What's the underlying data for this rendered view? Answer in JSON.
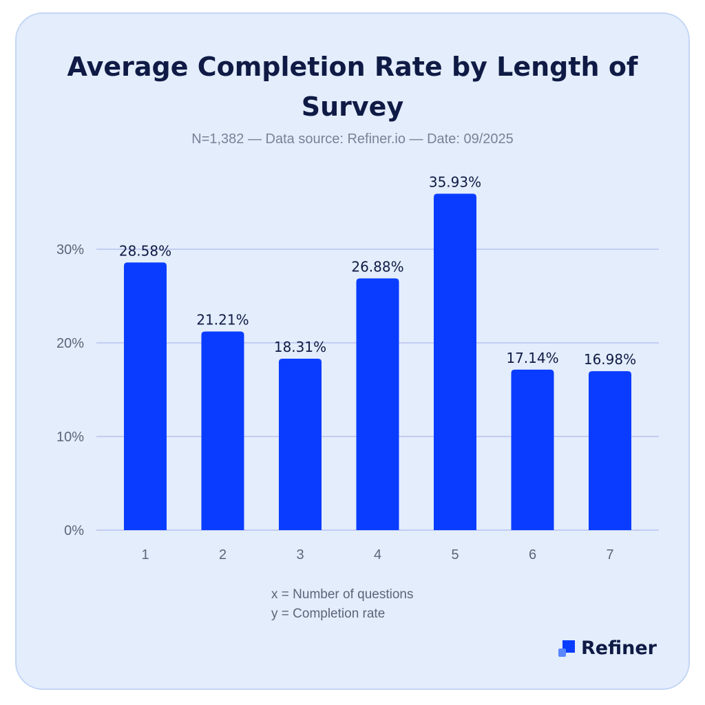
{
  "title": "Average Completion Rate by Length of Survey",
  "subtitle": "N=1,382  —  Data source: Refiner.io  —  Date: 09/2025",
  "legend": {
    "x": "x = Number of questions",
    "y": "y = Completion rate"
  },
  "brand": {
    "name": "Refiner",
    "accent": "#0a3cff",
    "text": "#0f1a45"
  },
  "chart_data": {
    "type": "bar",
    "title": "Average Completion Rate by Length of Survey",
    "xlabel": "Number of questions",
    "ylabel": "Completion rate",
    "categories": [
      "1",
      "2",
      "3",
      "4",
      "5",
      "6",
      "7"
    ],
    "values": [
      28.58,
      21.21,
      18.31,
      26.88,
      35.93,
      17.14,
      16.98
    ],
    "labels": [
      "28.58%",
      "21.21%",
      "18.31%",
      "26.88%",
      "35.93%",
      "17.14%",
      "16.98%"
    ],
    "yticks": [
      0,
      10,
      20,
      30
    ],
    "ytick_labels": [
      "0%",
      "10%",
      "20%",
      "30%"
    ],
    "ylim": [
      0,
      36
    ],
    "grid": true
  }
}
